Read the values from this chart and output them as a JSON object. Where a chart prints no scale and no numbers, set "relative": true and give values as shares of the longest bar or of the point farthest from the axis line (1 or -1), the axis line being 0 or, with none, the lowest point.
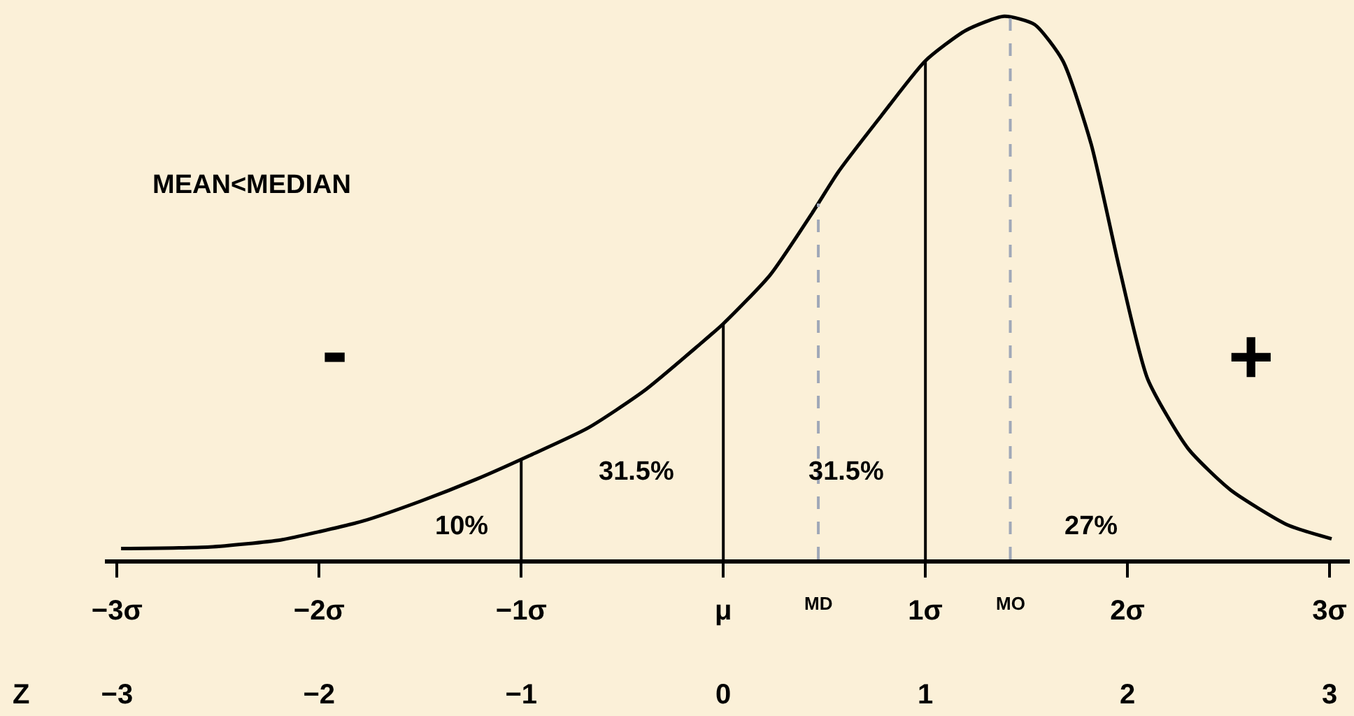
{
  "chart_data": {
    "type": "line",
    "relative": true,
    "grid": false,
    "marker": "none",
    "line_style": "solid",
    "x": [
      -2.98,
      -2.54,
      -2.19,
      -2.0,
      -1.78,
      -1.5,
      -1.22,
      -0.96,
      -0.67,
      -0.39,
      -0.12,
      0,
      0.23,
      0.44,
      0.57,
      0.78,
      1.0,
      1.2,
      1.39,
      1.54,
      1.68,
      1.82,
      1.96,
      2.1,
      2.3,
      2.51,
      2.79,
      3.01
    ],
    "series": [
      {
        "color": "#000000",
        "values": [
          0.02,
          0.023,
          0.036,
          0.051,
          0.071,
          0.107,
          0.148,
          0.191,
          0.242,
          0.311,
          0.395,
          0.434,
          0.523,
          0.638,
          0.714,
          0.816,
          0.918,
          0.974,
          1.0,
          0.985,
          0.918,
          0.765,
          0.536,
          0.332,
          0.204,
          0.128,
          0.064,
          0.038
        ]
      }
    ],
    "xlim": [
      -3.06,
      3.1
    ],
    "xticks": [
      {
        "value": -3,
        "label": "−3σ"
      },
      {
        "value": -2,
        "label": "−2σ"
      },
      {
        "value": -1,
        "label": "−1σ"
      },
      {
        "value": 0,
        "label": "μ"
      },
      {
        "value": 1,
        "label": "1σ"
      },
      {
        "value": 2,
        "label": "2σ"
      },
      {
        "value": 3,
        "label": "3σ"
      }
    ],
    "x2label": "Z",
    "x2lim": [
      -3.06,
      3.1
    ],
    "x2ticks": [
      {
        "value": -3,
        "label": "−3"
      },
      {
        "value": -2,
        "label": "−2"
      },
      {
        "value": -1,
        "label": "−1"
      },
      0,
      1,
      2,
      3
    ],
    "ref_lines": [
      {
        "axis": "x",
        "value": -1,
        "color": "#000000",
        "line_style": "solid"
      },
      {
        "axis": "x",
        "value": 0,
        "color": "#000000",
        "line_style": "solid"
      },
      {
        "axis": "x",
        "value": 0.47,
        "label": "MD",
        "color": "#a0a8b8",
        "line_style": "dashed"
      },
      {
        "axis": "x",
        "value": 1,
        "color": "#000000",
        "line_style": "solid"
      },
      {
        "axis": "x",
        "value": 1.42,
        "label": "MO",
        "color": "#a0a8b8",
        "line_style": "dashed"
      }
    ],
    "annotations": [
      "MEAN<MEDIAN",
      "-",
      "+",
      "10%",
      "31.5%",
      "31.5%",
      "27%"
    ]
  }
}
